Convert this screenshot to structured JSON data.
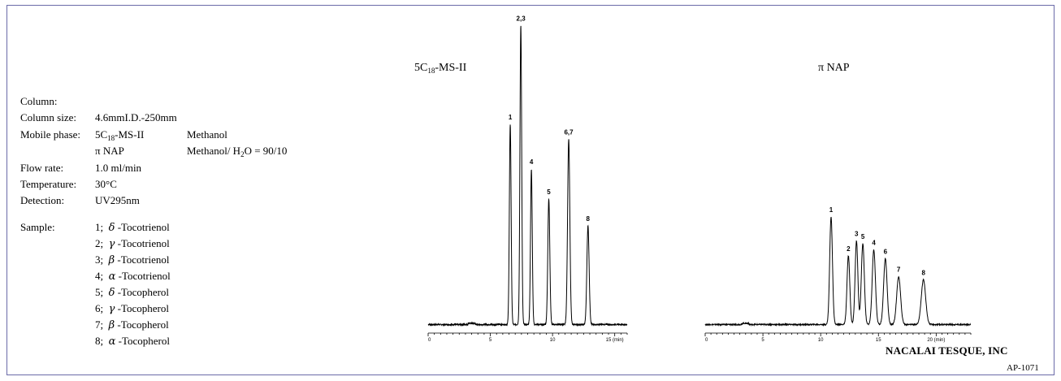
{
  "conditions": {
    "column_label": "Column:",
    "column_size_label": "Column size:",
    "column_size_value": "4.6mmI.D.-250mm",
    "mobile_phase_label": "Mobile phase:",
    "mp1_column_prefix": "5C",
    "mp1_column_sub": "18",
    "mp1_column_suffix": "-MS-II",
    "mp1_solvent": "Methanol",
    "mp2_column": "π NAP",
    "mp2_solvent_a": "Methanol/ H",
    "mp2_solvent_sub": "2",
    "mp2_solvent_b": "O = 90/10",
    "flow_rate_label": "Flow rate:",
    "flow_rate_value": "1.0 ml/min",
    "temperature_label": "Temperature:",
    "temperature_value": "30°C",
    "detection_label": "Detection:",
    "detection_value": "UV295nm",
    "sample_label": "Sample:"
  },
  "samples": [
    {
      "num": "1;",
      "greek": "δ",
      "name": "-Tocotrienol"
    },
    {
      "num": "2;",
      "greek": "γ",
      "name": "-Tocotrienol"
    },
    {
      "num": "3;",
      "greek": "β",
      "name": "-Tocotrienol"
    },
    {
      "num": "4;",
      "greek": "α",
      "name": "-Tocotrienol"
    },
    {
      "num": "5;",
      "greek": "δ",
      "name": "-Tocopherol"
    },
    {
      "num": "6;",
      "greek": "γ",
      "name": "-Tocopherol"
    },
    {
      "num": "7;",
      "greek": "β",
      "name": "-Tocopherol"
    },
    {
      "num": "8;",
      "greek": "α",
      "name": "-Tocopherol"
    }
  ],
  "footer": {
    "maker": "NACALAI TESQUE, INC",
    "code": "AP-1071"
  },
  "chart_data": [
    {
      "type": "line",
      "title_prefix": "5C",
      "title_sub": "18",
      "title_suffix": "-MS-II",
      "xlabel": "(min)",
      "xlim": [
        0,
        16
      ],
      "xticks": [
        0,
        5,
        10,
        15
      ],
      "xtick_labels": [
        "0",
        "5",
        "10",
        "15 (min)"
      ],
      "ylim": [
        0,
        1.0
      ],
      "baseline": 0.015,
      "peaks": [
        {
          "label": "1",
          "t": 6.6,
          "h": 0.67,
          "w": 0.07
        },
        {
          "label": "2,3",
          "t": 7.45,
          "h": 1.0,
          "w": 0.07
        },
        {
          "label": "4",
          "t": 8.3,
          "h": 0.52,
          "w": 0.07
        },
        {
          "label": "5",
          "t": 9.7,
          "h": 0.42,
          "w": 0.08
        },
        {
          "label": "6,7",
          "t": 11.3,
          "h": 0.62,
          "w": 0.09
        },
        {
          "label": "8",
          "t": 12.85,
          "h": 0.33,
          "w": 0.09
        }
      ]
    },
    {
      "type": "line",
      "title": "π NAP",
      "xlabel": "(min)",
      "xlim": [
        0,
        23
      ],
      "xticks": [
        0,
        5,
        10,
        15,
        20
      ],
      "xtick_labels": [
        "0",
        "5",
        "10",
        "15",
        "20  (min)"
      ],
      "ylim": [
        0,
        1.0
      ],
      "baseline": 0.015,
      "peaks": [
        {
          "label": "1",
          "t": 10.9,
          "h": 0.36,
          "w": 0.12
        },
        {
          "label": "2",
          "t": 12.4,
          "h": 0.23,
          "w": 0.12
        },
        {
          "label": "3",
          "t": 13.1,
          "h": 0.28,
          "w": 0.12
        },
        {
          "label": "5",
          "t": 13.65,
          "h": 0.27,
          "w": 0.13
        },
        {
          "label": "4",
          "t": 14.6,
          "h": 0.25,
          "w": 0.14
        },
        {
          "label": "6",
          "t": 15.6,
          "h": 0.22,
          "w": 0.15
        },
        {
          "label": "7",
          "t": 16.75,
          "h": 0.16,
          "w": 0.17
        },
        {
          "label": "8",
          "t": 18.9,
          "h": 0.15,
          "w": 0.19
        }
      ]
    }
  ]
}
